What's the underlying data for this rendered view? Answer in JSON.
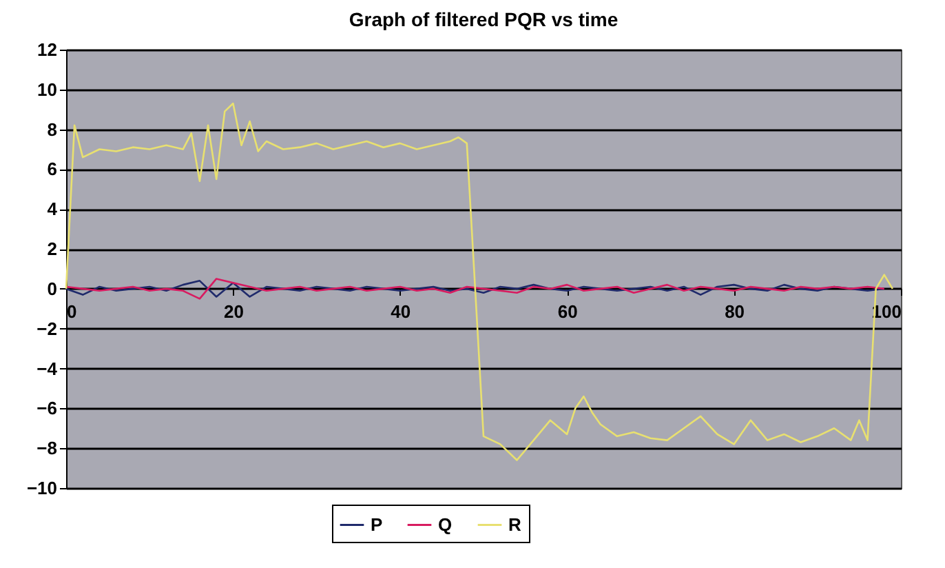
{
  "chart_data": {
    "type": "line",
    "title": "Graph of filtered PQR vs time",
    "x": [
      0,
      2,
      4,
      6,
      8,
      10,
      12,
      14,
      16,
      18,
      20,
      22,
      24,
      26,
      28,
      30,
      32,
      34,
      36,
      38,
      40,
      42,
      44,
      46,
      48,
      50,
      52,
      54,
      56,
      58,
      60,
      62,
      64,
      66,
      68,
      70,
      72,
      74,
      76,
      78,
      80,
      82,
      84,
      86,
      88,
      90,
      92,
      94,
      96,
      98
    ],
    "series": [
      {
        "name": "P",
        "color": "#1f2a6b",
        "values": [
          0,
          -0.3,
          0.1,
          -0.1,
          0,
          0.1,
          -0.1,
          0.2,
          0.4,
          -0.4,
          0.3,
          -0.4,
          0.1,
          0,
          -0.1,
          0.1,
          0,
          -0.1,
          0.1,
          0,
          -0.1,
          0,
          0.1,
          -0.1,
          0,
          -0.2,
          0.1,
          0,
          0.2,
          0,
          -0.1,
          0.1,
          0,
          -0.1,
          0,
          0.1,
          -0.1,
          0.1,
          -0.3,
          0.1,
          0.2,
          0,
          -0.1,
          0.2,
          0,
          -0.1,
          0.1,
          0,
          -0.1,
          0
        ]
      },
      {
        "name": "Q",
        "color": "#d81b60",
        "values": [
          0.1,
          0,
          -0.1,
          0,
          0.1,
          -0.1,
          0,
          -0.1,
          -0.5,
          0.5,
          0.3,
          0.1,
          -0.1,
          0,
          0.1,
          -0.1,
          0,
          0.1,
          -0.1,
          0,
          0.1,
          -0.1,
          0,
          -0.2,
          0.1,
          0,
          -0.1,
          -0.2,
          0.1,
          0,
          0.2,
          -0.1,
          0,
          0.1,
          -0.2,
          0,
          0.2,
          -0.1,
          0.1,
          0,
          -0.1,
          0.1,
          0,
          -0.1,
          0.1,
          0,
          0.1,
          0,
          0.1,
          0
        ]
      },
      {
        "name": "R",
        "color": "#e8e070",
        "x": [
          0,
          1,
          2,
          4,
          6,
          8,
          10,
          12,
          14,
          15,
          16,
          17,
          18,
          19,
          20,
          21,
          22,
          23,
          24,
          26,
          28,
          30,
          32,
          34,
          36,
          38,
          40,
          42,
          44,
          46,
          47,
          48,
          49,
          50,
          52,
          54,
          56,
          58,
          60,
          61,
          62,
          63,
          64,
          66,
          68,
          70,
          72,
          74,
          76,
          78,
          80,
          82,
          84,
          86,
          88,
          90,
          92,
          94,
          95,
          96,
          97,
          98,
          99
        ],
        "values": [
          0,
          8.2,
          6.6,
          7.0,
          6.9,
          7.1,
          7.0,
          7.2,
          7.0,
          7.8,
          5.4,
          8.2,
          5.5,
          8.9,
          9.3,
          7.2,
          8.4,
          6.9,
          7.4,
          7.0,
          7.1,
          7.3,
          7.0,
          7.2,
          7.4,
          7.1,
          7.3,
          7.0,
          7.2,
          7.4,
          7.6,
          7.3,
          0,
          -7.4,
          -7.8,
          -8.6,
          -7.6,
          -6.6,
          -7.3,
          -6.0,
          -5.4,
          -6.2,
          -6.8,
          -7.4,
          -7.2,
          -7.5,
          -7.6,
          -7.0,
          -6.4,
          -7.3,
          -7.8,
          -6.6,
          -7.6,
          -7.3,
          -7.7,
          -7.4,
          -7.0,
          -7.6,
          -6.6,
          -7.6,
          0,
          0.7,
          0
        ]
      }
    ],
    "xlim": [
      0,
      100
    ],
    "xticks": [
      0,
      20,
      40,
      60,
      80,
      100
    ],
    "ylim": [
      -10,
      12
    ],
    "yticks": [
      -10,
      -8,
      -6,
      -4,
      -2,
      0,
      2,
      4,
      6,
      8,
      10,
      12
    ],
    "grid": "y",
    "legend": "bottom",
    "marker": "none",
    "line_style": "solid"
  }
}
